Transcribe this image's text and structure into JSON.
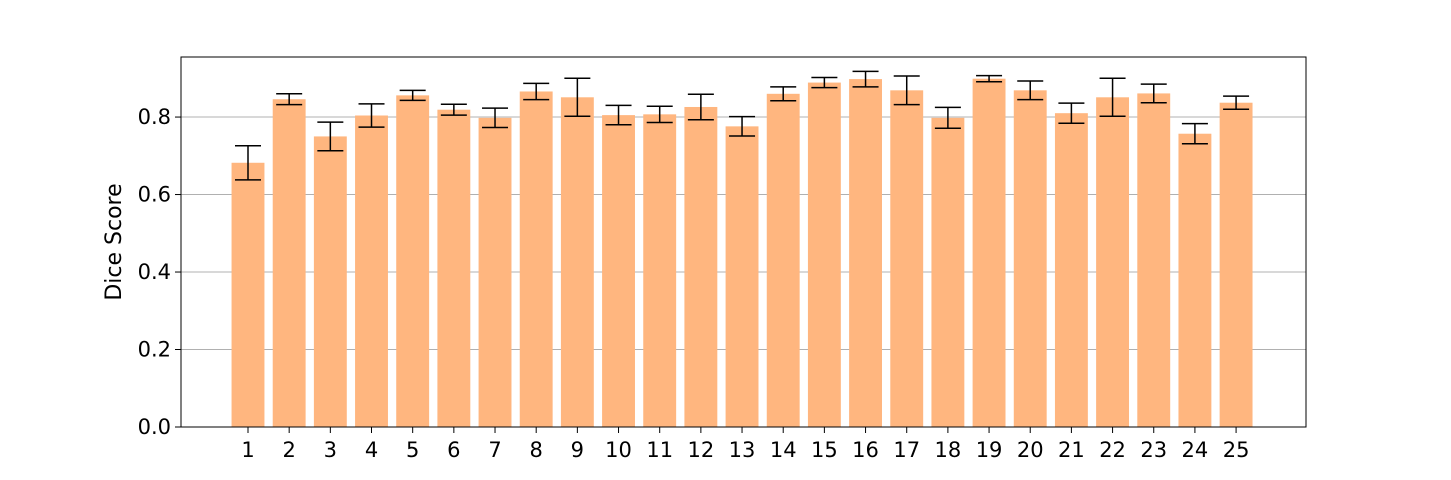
{
  "chart_data": {
    "type": "bar",
    "title": "",
    "xlabel": "",
    "ylabel": "Dice Score",
    "categories": [
      "1",
      "2",
      "3",
      "4",
      "5",
      "6",
      "7",
      "8",
      "9",
      "10",
      "11",
      "12",
      "13",
      "14",
      "15",
      "16",
      "17",
      "18",
      "19",
      "20",
      "21",
      "22",
      "23",
      "24",
      "25"
    ],
    "values": [
      0.682,
      0.846,
      0.75,
      0.804,
      0.856,
      0.819,
      0.798,
      0.866,
      0.851,
      0.805,
      0.807,
      0.826,
      0.776,
      0.86,
      0.889,
      0.898,
      0.869,
      0.798,
      0.899,
      0.869,
      0.81,
      0.851,
      0.861,
      0.757,
      0.837
    ],
    "errors": [
      0.044,
      0.014,
      0.037,
      0.03,
      0.013,
      0.014,
      0.025,
      0.021,
      0.049,
      0.025,
      0.021,
      0.033,
      0.025,
      0.018,
      0.013,
      0.02,
      0.037,
      0.027,
      0.008,
      0.024,
      0.026,
      0.049,
      0.024,
      0.026,
      0.017
    ],
    "ylim": [
      0,
      0.955
    ],
    "yticks": [
      "0.0",
      "0.2",
      "0.4",
      "0.6",
      "0.8"
    ],
    "grid": "y",
    "legend": "none",
    "bar_color": "#FFB67F",
    "error_color": "#000000",
    "grid_color": "#B0B0B0"
  }
}
